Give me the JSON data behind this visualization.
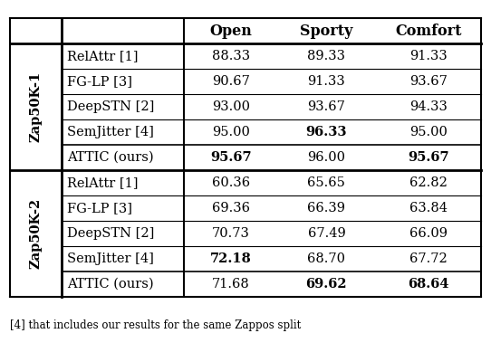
{
  "header_cols": [
    "Open",
    "Sporty",
    "Comfort"
  ],
  "section1_label": "Zap50K-1",
  "section2_label": "Zap50K-2",
  "rows_s1": [
    [
      "RelAttr [1]",
      "88.33",
      "89.33",
      "91.33"
    ],
    [
      "FG-LP [3]",
      "90.67",
      "91.33",
      "93.67"
    ],
    [
      "DeepSTN [2]",
      "93.00",
      "93.67",
      "94.33"
    ],
    [
      "SemJitter [4]",
      "95.00",
      "96.33",
      "95.00"
    ],
    [
      "ATTIC (ours)",
      "95.67",
      "96.00",
      "95.67"
    ]
  ],
  "rows_s2": [
    [
      "RelAttr [1]",
      "60.36",
      "65.65",
      "62.82"
    ],
    [
      "FG-LP [3]",
      "69.36",
      "66.39",
      "63.84"
    ],
    [
      "DeepSTN [2]",
      "70.73",
      "67.49",
      "66.09"
    ],
    [
      "SemJitter [4]",
      "72.18",
      "68.70",
      "67.72"
    ],
    [
      "ATTIC (ours)",
      "71.68",
      "69.62",
      "68.64"
    ]
  ],
  "bold_s1": [
    [
      false,
      false,
      false,
      false
    ],
    [
      false,
      false,
      false,
      false
    ],
    [
      false,
      false,
      false,
      false
    ],
    [
      false,
      false,
      true,
      false
    ],
    [
      false,
      true,
      false,
      true
    ]
  ],
  "bold_s2": [
    [
      false,
      false,
      false,
      false
    ],
    [
      false,
      false,
      false,
      false
    ],
    [
      false,
      false,
      false,
      false
    ],
    [
      false,
      true,
      false,
      false
    ],
    [
      false,
      false,
      true,
      true
    ]
  ],
  "footer_text": "[4] that includes our results for the same Zappos split",
  "bg_color": "#ffffff",
  "line_color": "#000000",
  "font_size": 10.5,
  "header_font_size": 11.5
}
